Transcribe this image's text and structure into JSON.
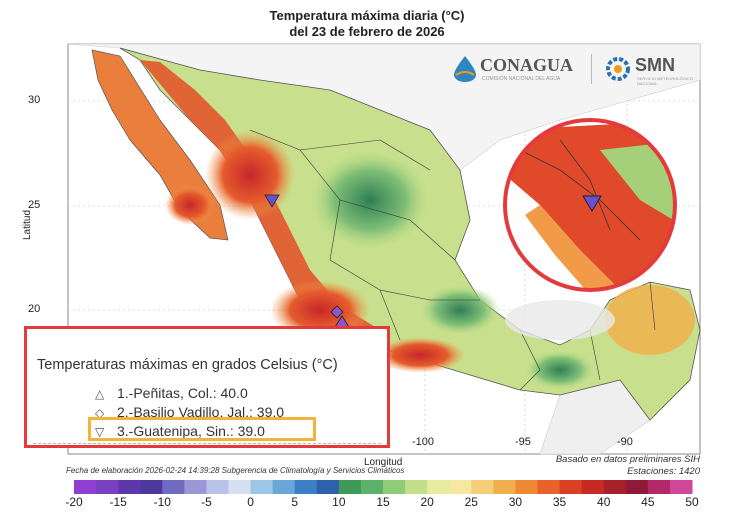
{
  "title": {
    "line1": "Temperatura máxima diaria (°C)",
    "line2": "del 23 de febrero de 2026"
  },
  "axes": {
    "ylabel": "Latitud",
    "xlabel": "Longitud",
    "lat_ticks": [
      "30",
      "25",
      "20"
    ],
    "lon_ticks": [
      "-100",
      "-95",
      "-90"
    ]
  },
  "logos": {
    "conagua": "CONAGUA",
    "conagua_sub": "COMISIÓN NACIONAL DEL AGUA",
    "smn": "SMN",
    "smn_sub": "SERVICIO METEOROLÓGICO NACIONAL"
  },
  "legend": {
    "title": "Temperaturas máximas en grados Celsius (°C)",
    "items": [
      {
        "symbol": "△",
        "text": "1.-Peñitas, Col.: 40.0"
      },
      {
        "symbol": "◇",
        "text": "2.-Basilio Vadillo, Jal.: 39.0"
      },
      {
        "symbol": "▽",
        "text": "3.-Guatenipa, Sin.: 39.0"
      }
    ]
  },
  "footer": {
    "left": "Fecha de elaboración 2026-02-24 14:39:28 Subgerencia de Climatología y Servicios Climáticos",
    "right1": "Basado en datos preliminares SIH",
    "right2": "Estaciones:  1420"
  },
  "colorbar": {
    "ticks": [
      "-20",
      "-15",
      "-10",
      "-5",
      "0",
      "5",
      "10",
      "15",
      "20",
      "25",
      "30",
      "35",
      "40",
      "45",
      "50"
    ],
    "colors": [
      "#8e3fd1",
      "#7b3fc2",
      "#5e38a8",
      "#4b3a9c",
      "#6f6bc0",
      "#9a97d6",
      "#b9c2e8",
      "#d8dff2",
      "#9cc6e6",
      "#6aa6d8",
      "#3b7fc4",
      "#2c62ad",
      "#3f9a5a",
      "#5bb36a",
      "#8fcc77",
      "#c2df8a",
      "#e6ec9e",
      "#f6e7a1",
      "#f4cf78",
      "#f1b04f",
      "#ee8a36",
      "#e8622a",
      "#d94024",
      "#c72a23",
      "#a8202a",
      "#8e1a38",
      "#b2286a",
      "#d0479a"
    ]
  },
  "colors": {
    "frame_red": "#e33b3b",
    "highlight": "#f3b23a",
    "sea": "#ffffff",
    "gulf": "#f0f0f0"
  }
}
